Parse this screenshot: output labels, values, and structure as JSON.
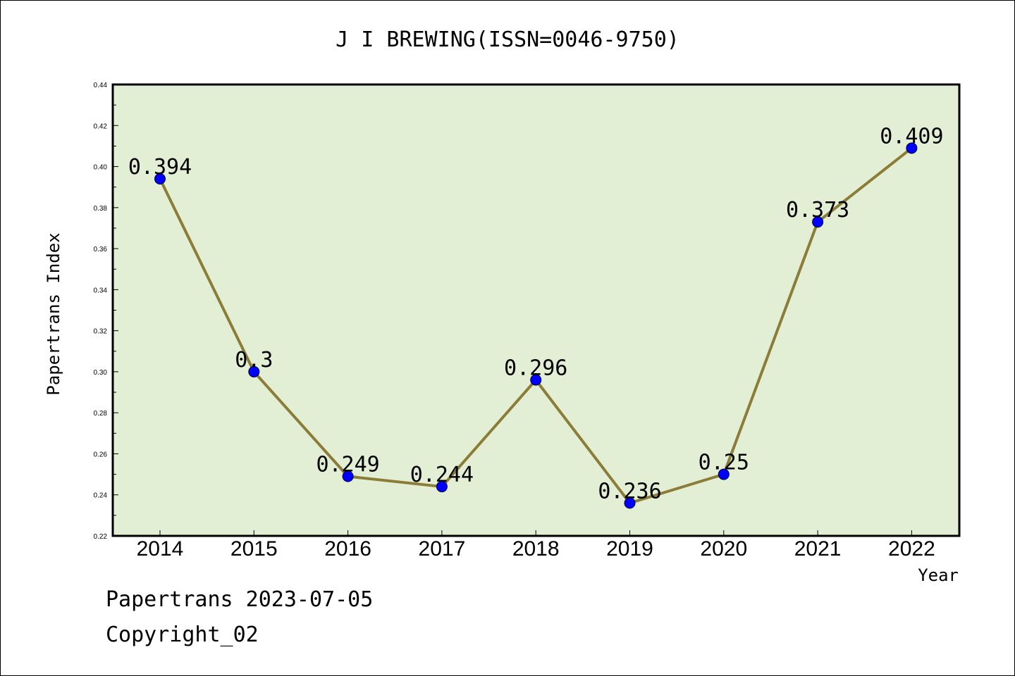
{
  "chart_data": {
    "type": "line",
    "title": "J I BREWING(ISSN=0046-9750)",
    "xlabel": "Year",
    "ylabel": "Papertrans Index",
    "categories": [
      "2014",
      "2015",
      "2016",
      "2017",
      "2018",
      "2019",
      "2020",
      "2021",
      "2022"
    ],
    "values": [
      0.394,
      0.3,
      0.249,
      0.244,
      0.296,
      0.236,
      0.25,
      0.373,
      0.409
    ],
    "data_labels": [
      "0.394",
      "0.3",
      "0.249",
      "0.244",
      "0.296",
      "0.236",
      "0.25",
      "0.373",
      "0.409"
    ],
    "ylim": [
      0.22,
      0.44
    ],
    "yticks": [
      "0.22",
      "0.24",
      "0.26",
      "0.28",
      "0.30",
      "0.32",
      "0.34",
      "0.36",
      "0.38",
      "0.40",
      "0.42",
      "0.44"
    ],
    "grid": false,
    "legend": "none",
    "colors": {
      "plot_background": "#e2efd5",
      "line": "#8b7d38",
      "marker": "#0000ff"
    }
  },
  "footer": {
    "date_line": "Papertrans 2023-07-05",
    "copyright": "Copyright_02"
  }
}
